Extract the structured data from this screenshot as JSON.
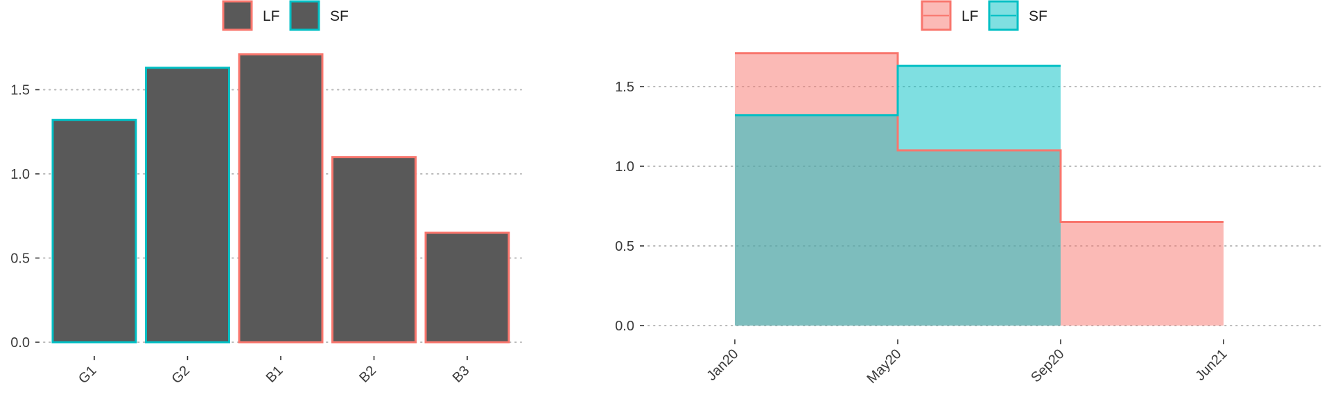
{
  "chart_data": [
    {
      "type": "bar",
      "categories": [
        "G1",
        "G2",
        "B1",
        "B2",
        "B3"
      ],
      "values": [
        1.32,
        1.63,
        1.71,
        1.1,
        0.65
      ],
      "groups": [
        "SF",
        "SF",
        "LF",
        "LF",
        "LF"
      ],
      "legend": [
        {
          "label": "LF",
          "outline": "#F8766D",
          "fill": "#595959"
        },
        {
          "label": "SF",
          "outline": "#00BFC4",
          "fill": "#595959"
        }
      ],
      "legend_position": "top",
      "ylim": [
        0,
        1.8
      ],
      "yticks": [
        0.0,
        0.5,
        1.0,
        1.5
      ],
      "ytick_labels": [
        "0.0",
        "0.5",
        "1.0",
        "1.5"
      ],
      "grid": "horizontal dotted",
      "bar_fill": "#595959"
    },
    {
      "type": "area",
      "step": true,
      "x_ticks": [
        "Jan20",
        "May20",
        "Sep20",
        "Jun21"
      ],
      "series": [
        {
          "name": "LF",
          "color": "#F8766D",
          "fill": "#F8766D",
          "segments": [
            {
              "from": "Jan20",
              "to": "May20",
              "value": 1.71
            },
            {
              "from": "May20",
              "to": "Sep20",
              "value": 1.1
            },
            {
              "from": "Sep20",
              "to": "Jun21",
              "value": 0.65
            }
          ]
        },
        {
          "name": "SF",
          "color": "#00BFC4",
          "fill": "#00BFC4",
          "segments": [
            {
              "from": "Jan20",
              "to": "May20",
              "value": 1.32
            },
            {
              "from": "May20",
              "to": "Sep20",
              "value": 1.63
            }
          ]
        }
      ],
      "legend_position": "top",
      "ylim": [
        0,
        1.8
      ],
      "yticks": [
        0.0,
        0.5,
        1.0,
        1.5
      ],
      "ytick_labels": [
        "0.0",
        "0.5",
        "1.0",
        "1.5"
      ],
      "grid": "horizontal dotted"
    }
  ]
}
